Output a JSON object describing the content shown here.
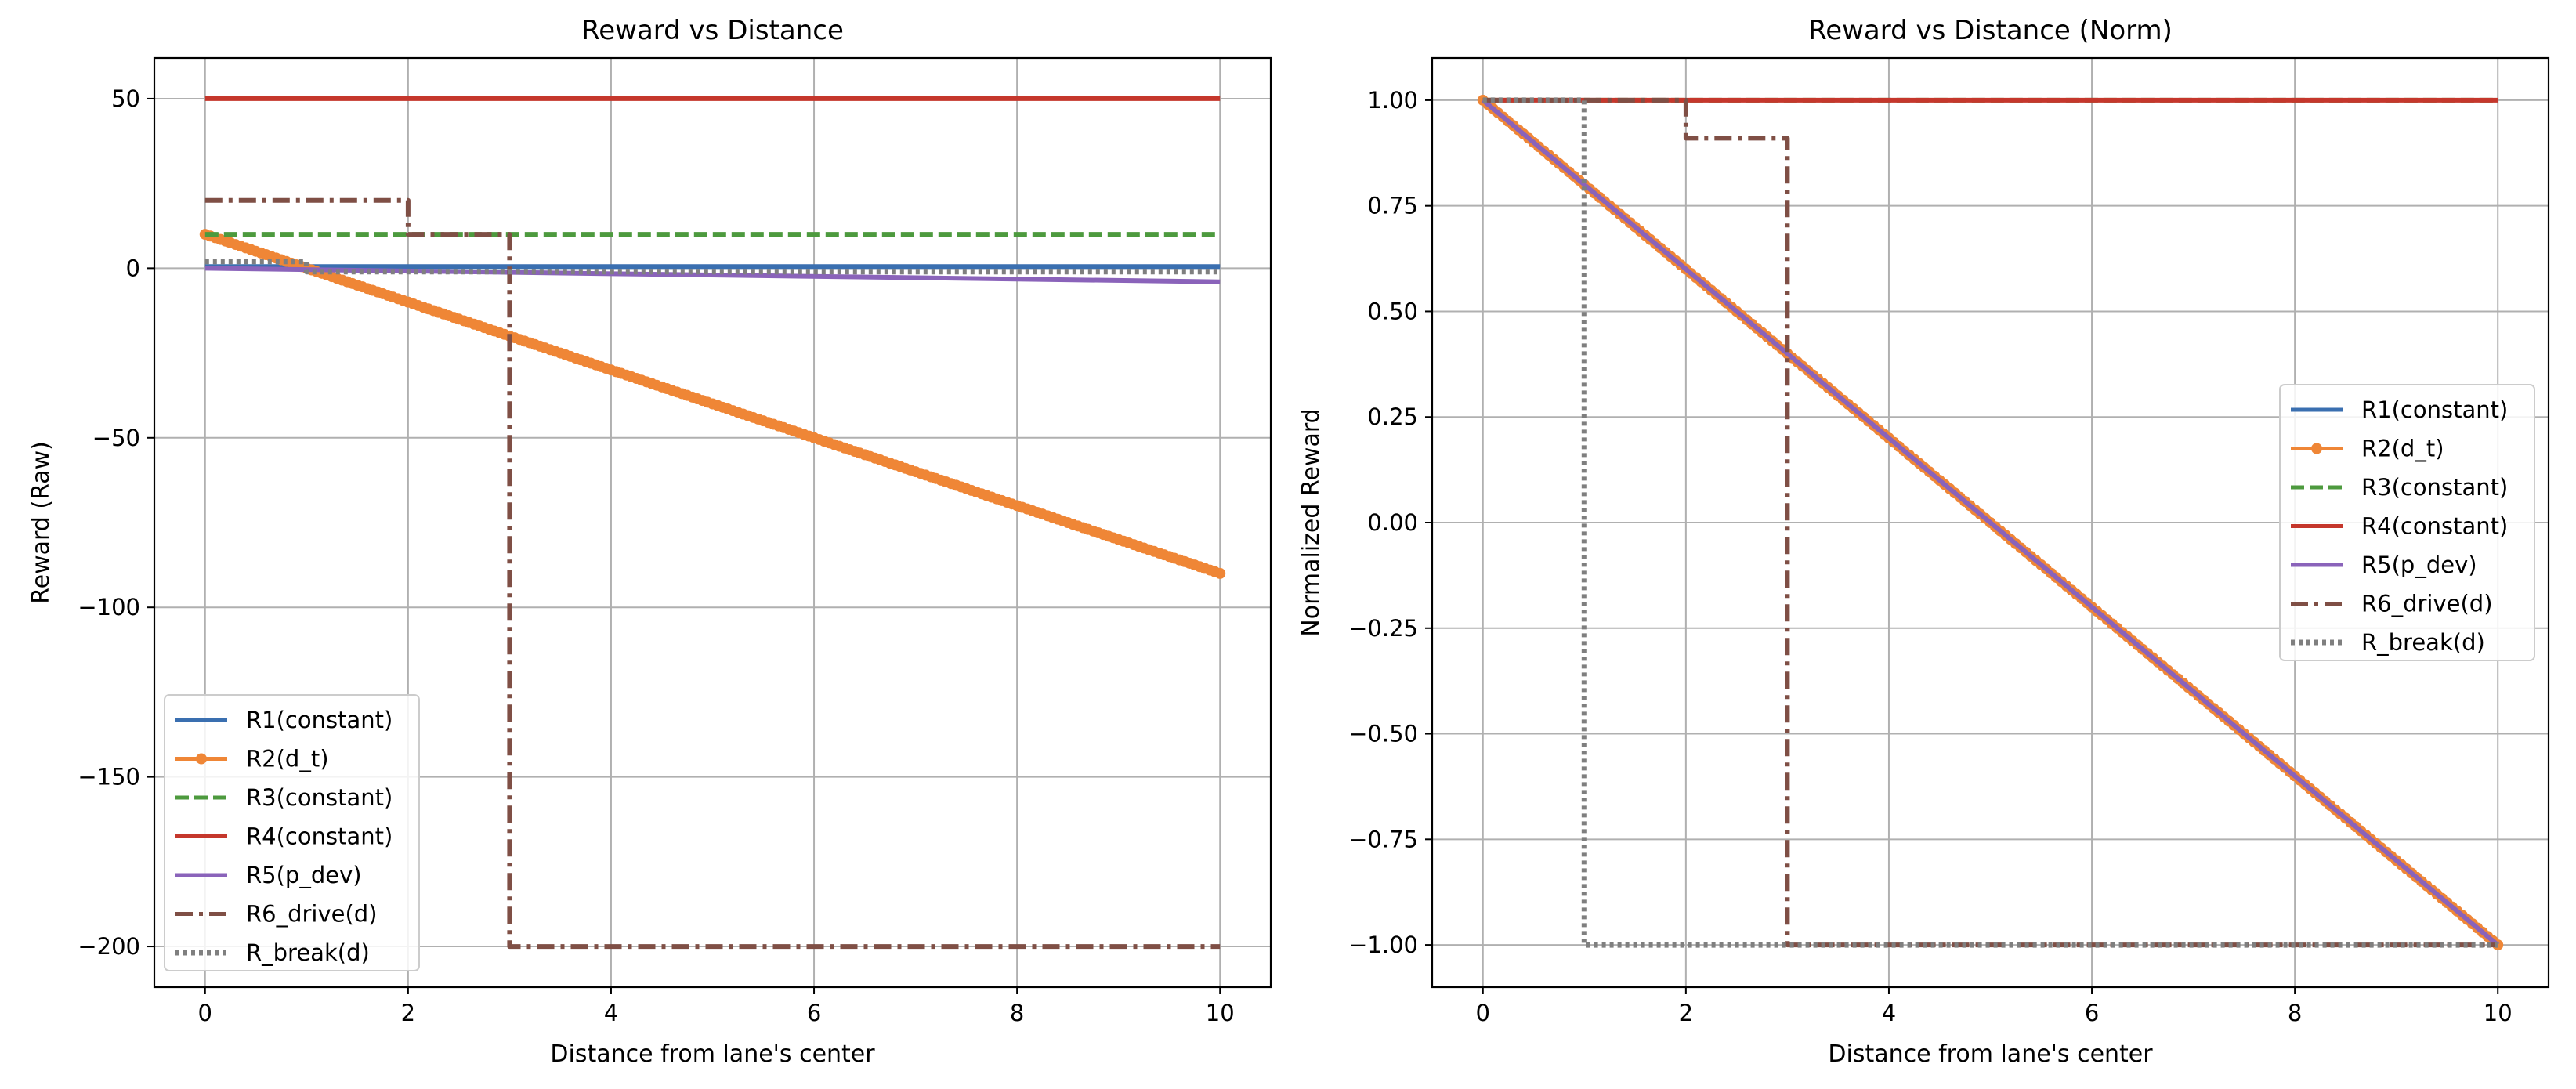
{
  "chart_data": [
    {
      "type": "line",
      "title": "Reward vs Distance",
      "xlabel": "Distance from lane's center",
      "ylabel": "Reward (Raw)",
      "xlim": [
        -0.5,
        10.5
      ],
      "ylim": [
        -212,
        62
      ],
      "xticks": [
        0,
        2,
        4,
        6,
        8,
        10
      ],
      "yticks": [
        50,
        0,
        -50,
        -100,
        -150,
        -200
      ],
      "ytick_labels": [
        "50",
        "0",
        "−50",
        "−100",
        "−150",
        "−200"
      ],
      "grid": true,
      "legend_position": "lower-left",
      "series": [
        {
          "name": "R1(constant)",
          "color": "#3a6fb0",
          "style": "solid",
          "x": [
            0,
            10
          ],
          "y": [
            0.5,
            0.5
          ]
        },
        {
          "name": "R2(d_t)",
          "color": "#ef8636",
          "style": "solid-markers",
          "x": [
            0,
            10
          ],
          "y": [
            10,
            -90
          ]
        },
        {
          "name": "R3(constant)",
          "color": "#4d9a3e",
          "style": "dashed",
          "x": [
            0,
            10
          ],
          "y": [
            10,
            10
          ]
        },
        {
          "name": "R4(constant)",
          "color": "#c5372c",
          "style": "solid",
          "x": [
            0,
            10
          ],
          "y": [
            50,
            50
          ]
        },
        {
          "name": "R5(p_dev)",
          "color": "#8a63ba",
          "style": "solid",
          "x": [
            0,
            10
          ],
          "y": [
            0,
            -4
          ]
        },
        {
          "name": "R6_drive(d)",
          "color": "#7f4f45",
          "style": "dashdot",
          "x": [
            0,
            2,
            2,
            3,
            3,
            10
          ],
          "y": [
            20,
            20,
            10,
            10,
            -200,
            -200
          ]
        },
        {
          "name": "R_break(d)",
          "color": "#7f7f7f",
          "style": "dotted",
          "x": [
            0,
            1,
            1,
            10
          ],
          "y": [
            2,
            2,
            -1,
            -1
          ]
        }
      ]
    },
    {
      "type": "line",
      "title": "Reward vs Distance (Norm)",
      "xlabel": "Distance from lane's center",
      "ylabel": "Normalized Reward",
      "xlim": [
        -0.5,
        10.5
      ],
      "ylim": [
        -1.1,
        1.1
      ],
      "xticks": [
        0,
        2,
        4,
        6,
        8,
        10
      ],
      "yticks": [
        1.0,
        0.75,
        0.5,
        0.25,
        0.0,
        -0.25,
        -0.5,
        -0.75,
        -1.0
      ],
      "ytick_labels": [
        "1.00",
        "0.75",
        "0.50",
        "0.25",
        "0.00",
        "−0.25",
        "−0.50",
        "−0.75",
        "−1.00"
      ],
      "grid": true,
      "legend_position": "center-right",
      "series": [
        {
          "name": "R1(constant)",
          "color": "#3a6fb0",
          "style": "solid",
          "x": [
            0,
            10
          ],
          "y": [
            1,
            -1
          ]
        },
        {
          "name": "R2(d_t)",
          "color": "#ef8636",
          "style": "solid-markers",
          "x": [
            0,
            10
          ],
          "y": [
            1,
            -1
          ]
        },
        {
          "name": "R3(constant)",
          "color": "#4d9a3e",
          "style": "dashed",
          "x": [
            0,
            10
          ],
          "y": [
            1,
            1
          ]
        },
        {
          "name": "R4(constant)",
          "color": "#c5372c",
          "style": "solid",
          "x": [
            0,
            10
          ],
          "y": [
            1,
            1
          ]
        },
        {
          "name": "R5(p_dev)",
          "color": "#8a63ba",
          "style": "solid",
          "x": [
            0,
            10
          ],
          "y": [
            1,
            -1
          ]
        },
        {
          "name": "R6_drive(d)",
          "color": "#7f4f45",
          "style": "dashdot",
          "x": [
            0,
            2,
            2,
            3,
            3,
            10
          ],
          "y": [
            1,
            1,
            0.91,
            0.91,
            -1,
            -1
          ]
        },
        {
          "name": "R_break(d)",
          "color": "#7f7f7f",
          "style": "dotted",
          "x": [
            0,
            1,
            1,
            10
          ],
          "y": [
            1,
            1,
            -1,
            -1
          ]
        }
      ]
    }
  ]
}
